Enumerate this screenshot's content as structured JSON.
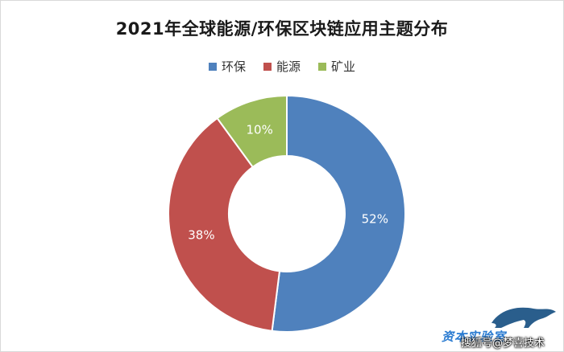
{
  "chart_data": {
    "type": "pie",
    "title": "2021年全球能源/环保区块链应用主题分布",
    "legend_position": "top",
    "donut": true,
    "slices": [
      {
        "label": "环保",
        "value": 52,
        "display": "52%",
        "color": "#4f81bd"
      },
      {
        "label": "能源",
        "value": 38,
        "display": "38%",
        "color": "#c0504d"
      },
      {
        "label": "矿业",
        "value": 10,
        "display": "10%",
        "color": "#9bbb59"
      }
    ]
  },
  "watermark": {
    "brand": "资本实验室",
    "text": "搜狐号@梦喜技术"
  }
}
